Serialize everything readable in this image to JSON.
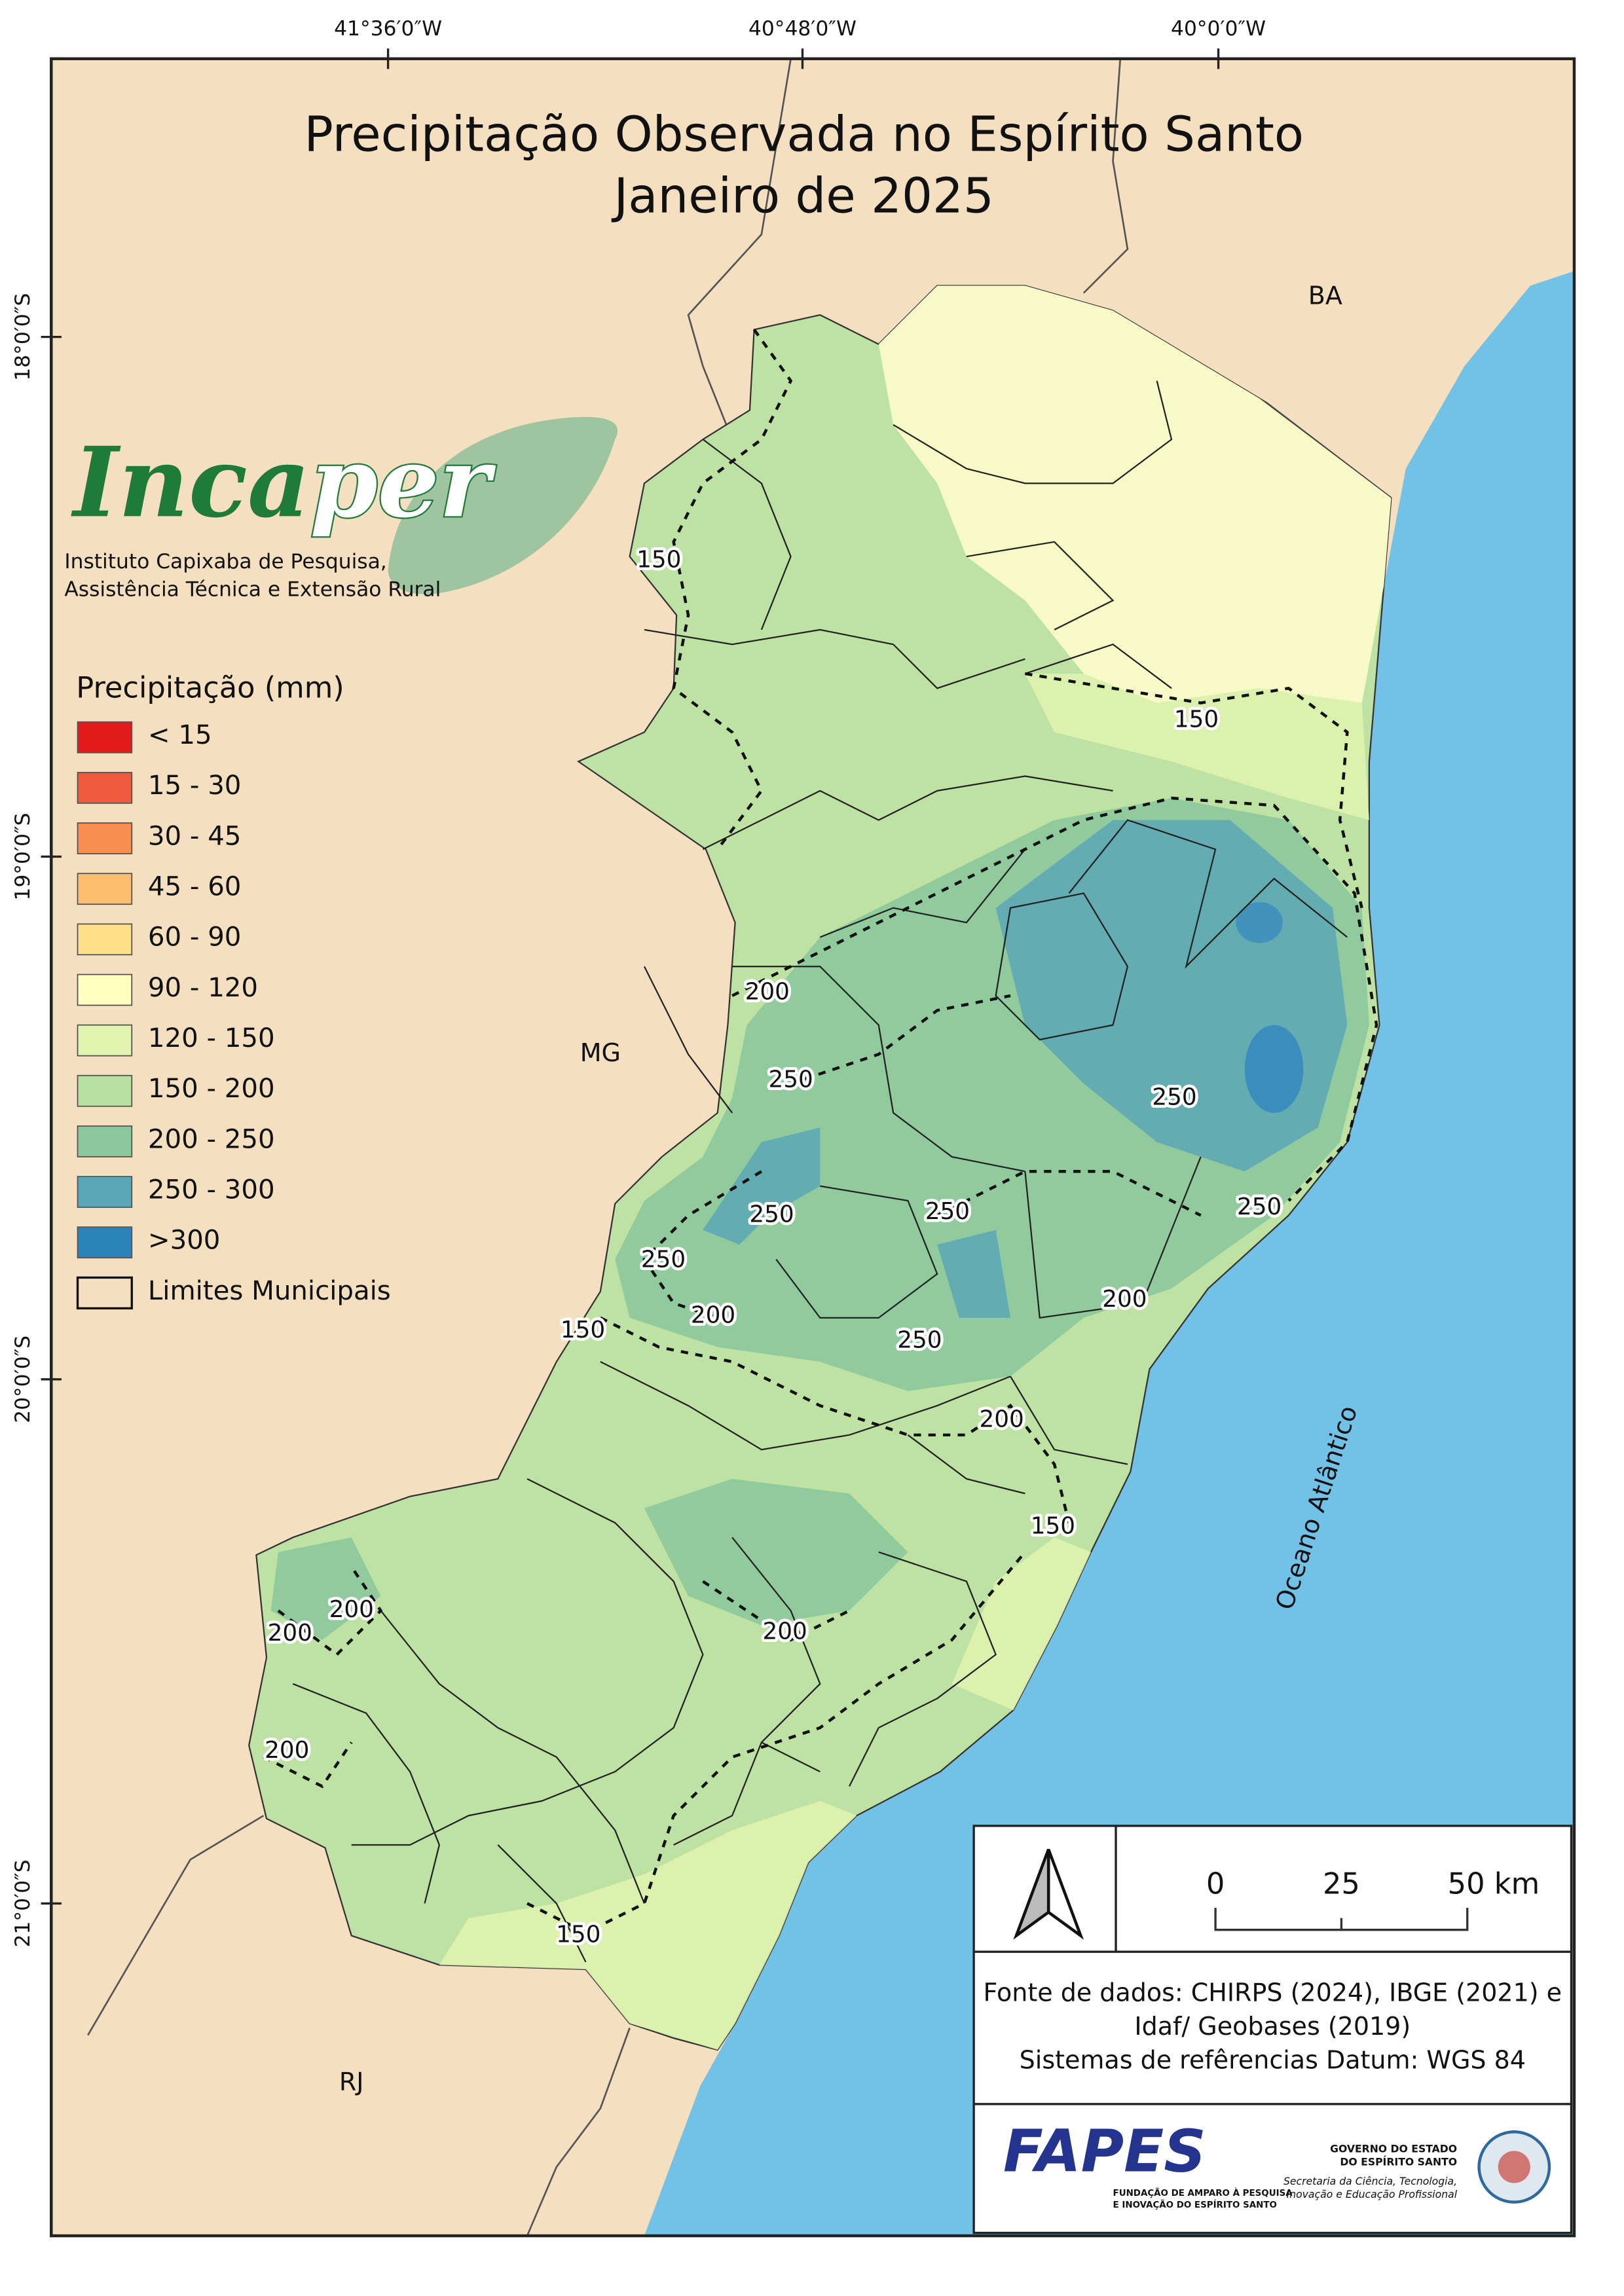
{
  "header": {
    "title_lines": [
      "Precipitação Observada no Espírito Santo",
      "Janeiro de 2025"
    ]
  },
  "graticule": {
    "longitudes": [
      "41°36′0″W",
      "40°48′0″W",
      "40°0′0″W"
    ],
    "latitudes": [
      "18°0′0″S",
      "19°0′0″S",
      "20°0′0″S",
      "21°0′0″S"
    ]
  },
  "logo": {
    "name_a": "Inca",
    "name_b": "per",
    "subtitle_lines": [
      "Instituto Capixaba de Pesquisa,",
      "Assistência Técnica e Extensão Rural"
    ]
  },
  "legend": {
    "title": "Precipitação (mm)",
    "entries": [
      {
        "label": "< 15",
        "color": "#e31a1c"
      },
      {
        "label": "15 - 30",
        "color": "#ee5a3b"
      },
      {
        "label": "30 - 45",
        "color": "#f98e52"
      },
      {
        "label": "45 - 60",
        "color": "#fdbf6f"
      },
      {
        "label": "60 - 90",
        "color": "#fee08b"
      },
      {
        "label": "90 - 120",
        "color": "#ffffbf"
      },
      {
        "label": "120 - 150",
        "color": "#e3f3b0"
      },
      {
        "label": "150 - 200",
        "color": "#b8e0a0"
      },
      {
        "label": "200 - 250",
        "color": "#8cc89c"
      },
      {
        "label": "250 - 300",
        "color": "#5aa7b8"
      },
      {
        "label": ">300",
        "color": "#2b83ba"
      },
      {
        "label": "Limites Municipais",
        "color": "#f4dfc0"
      }
    ]
  },
  "regions": [
    "BA",
    "MG",
    "RJ",
    "Oceano Atlântico"
  ],
  "contour_labels": [
    150,
    150,
    200,
    250,
    250,
    250,
    250,
    250,
    250,
    200,
    200,
    150,
    250,
    200,
    150,
    200,
    200,
    200,
    200,
    150
  ],
  "scale_bar": {
    "labels": [
      "0",
      "25",
      "50 km"
    ]
  },
  "source_lines": [
    "Fonte de dados: CHIRPS (2024), IBGE (2021) e",
    "Idaf/ Geobases (2019)",
    "Sistemas de refêrencias Datum: WGS 84"
  ],
  "fapes": {
    "name": "FAPES",
    "lines": [
      "FUNDAÇÃO DE AMPARO À PESQUISA",
      "E INOVAÇÃO DO ESPÍRITO SANTO"
    ]
  },
  "government": {
    "lines": [
      "GOVERNO DO ESTADO",
      "DO ESPÍRITO SANTO",
      "Secretaria da Ciência, Tecnologia,",
      "Inovação e Educação Profissional"
    ]
  }
}
